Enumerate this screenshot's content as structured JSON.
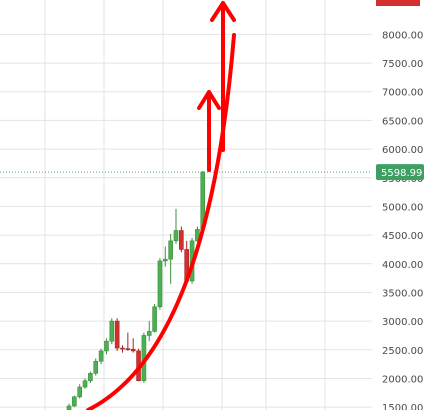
{
  "chart_data": {
    "type": "candlestick",
    "title": "",
    "xlabel": "",
    "ylabel": "",
    "ylim": [
      1450,
      8600
    ],
    "yticks": [
      1500,
      2000,
      2500,
      3000,
      3500,
      4000,
      4500,
      5000,
      5500,
      6000,
      6500,
      7000,
      7500,
      8000
    ],
    "ytick_labels": [
      "1500.00",
      "2000.00",
      "2500.00",
      "3000.00",
      "3500.00",
      "4000.00",
      "4500.00",
      "5000.00",
      "5500.00",
      "6000.00",
      "6500.00",
      "7000.00",
      "7500.00",
      "8000.00"
    ],
    "grid": true,
    "current_price": 5598.99,
    "current_price_label": "5598.99",
    "colors": {
      "up": "#4caf50",
      "down": "#d32f2f",
      "annotation": "#ff0000",
      "price_line": "#5aa372",
      "price_tag": "#3f9e62",
      "grid": "#e3e3e3"
    },
    "candles": [
      {
        "o": 1400,
        "h": 1560,
        "l": 1380,
        "c": 1520
      },
      {
        "o": 1520,
        "h": 1700,
        "l": 1500,
        "c": 1680
      },
      {
        "o": 1680,
        "h": 1900,
        "l": 1650,
        "c": 1850
      },
      {
        "o": 1850,
        "h": 2000,
        "l": 1820,
        "c": 1960
      },
      {
        "o": 1960,
        "h": 2120,
        "l": 1920,
        "c": 2090
      },
      {
        "o": 2090,
        "h": 2350,
        "l": 2050,
        "c": 2300
      },
      {
        "o": 2300,
        "h": 2520,
        "l": 2250,
        "c": 2480
      },
      {
        "o": 2480,
        "h": 2700,
        "l": 2420,
        "c": 2650
      },
      {
        "o": 2650,
        "h": 3050,
        "l": 2600,
        "c": 3000
      },
      {
        "o": 3000,
        "h": 3050,
        "l": 2480,
        "c": 2530
      },
      {
        "o": 2530,
        "h": 2580,
        "l": 2450,
        "c": 2520
      },
      {
        "o": 2520,
        "h": 2800,
        "l": 2480,
        "c": 2510
      },
      {
        "o": 2510,
        "h": 2700,
        "l": 2450,
        "c": 2480
      },
      {
        "o": 2480,
        "h": 2520,
        "l": 1950,
        "c": 1960
      },
      {
        "o": 1960,
        "h": 2800,
        "l": 1920,
        "c": 2750
      },
      {
        "o": 2750,
        "h": 3000,
        "l": 2650,
        "c": 2820
      },
      {
        "o": 2820,
        "h": 3300,
        "l": 2800,
        "c": 3250
      },
      {
        "o": 3250,
        "h": 4100,
        "l": 3200,
        "c": 4050
      },
      {
        "o": 4050,
        "h": 4300,
        "l": 3950,
        "c": 4080
      },
      {
        "o": 4080,
        "h": 4520,
        "l": 3650,
        "c": 4400
      },
      {
        "o": 4400,
        "h": 4960,
        "l": 4350,
        "c": 4580
      },
      {
        "o": 4580,
        "h": 4650,
        "l": 4200,
        "c": 4250
      },
      {
        "o": 4250,
        "h": 4400,
        "l": 3650,
        "c": 3700
      },
      {
        "o": 3700,
        "h": 4450,
        "l": 3650,
        "c": 4400
      },
      {
        "o": 4400,
        "h": 4650,
        "l": 4380,
        "c": 4600
      },
      {
        "o": 4600,
        "h": 5620,
        "l": 4580,
        "c": 5598.99
      }
    ]
  }
}
